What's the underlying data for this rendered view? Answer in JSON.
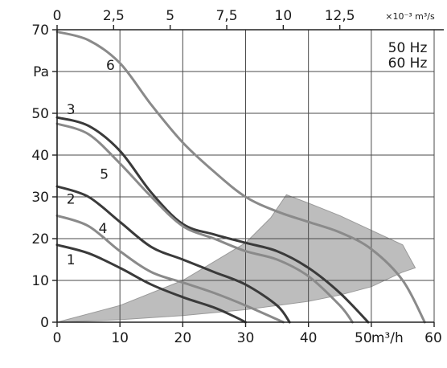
{
  "chart_data": {
    "type": "line",
    "title": "",
    "x_bottom": {
      "ticks": [
        0,
        10,
        20,
        30,
        40,
        50,
        60
      ],
      "tick_labels": [
        "0",
        "10",
        "20",
        "30",
        "40",
        "50",
        "60"
      ],
      "unit_label": "m³/h",
      "range": [
        0,
        60
      ]
    },
    "x_top": {
      "ticks": [
        0,
        2.5,
        5,
        7.5,
        10,
        12.5
      ],
      "tick_labels": [
        "0",
        "2,5",
        "5",
        "7,5",
        "10",
        "12,5"
      ],
      "unit_label": "×10⁻³ m³/s",
      "range": [
        0,
        16.67
      ]
    },
    "y": {
      "ticks": [
        0,
        10,
        20,
        30,
        40,
        50,
        60,
        70
      ],
      "tick_labels": [
        "0",
        "10",
        "20",
        "30",
        "40",
        "50",
        "60",
        "70"
      ],
      "unit_label": "Pa",
      "range": [
        0,
        70
      ]
    },
    "legend": {
      "lines": [
        "50 Hz",
        "60 Hz"
      ],
      "placement": "top-right"
    },
    "grid": true,
    "colors": {
      "dark": "#3a3a3a",
      "light": "#8a8a8a",
      "shade": "#bdbdbd",
      "grid": "#4a4a4a"
    },
    "series": [
      {
        "name": "1",
        "style": "dark",
        "x": [
          0,
          5,
          10,
          15,
          20,
          25,
          28,
          30
        ],
        "y": [
          18.5,
          16.5,
          13,
          9,
          6,
          3.5,
          1.5,
          0
        ]
      },
      {
        "name": "2",
        "style": "dark",
        "x": [
          0,
          5,
          10,
          15,
          20,
          25,
          30,
          35,
          37
        ],
        "y": [
          32.5,
          30,
          24,
          18,
          15,
          12,
          9,
          4,
          0
        ]
      },
      {
        "name": "3",
        "style": "dark",
        "x": [
          0,
          5,
          10,
          15,
          20,
          25,
          30,
          35,
          40,
          45,
          49.5
        ],
        "y": [
          49,
          47,
          41,
          31,
          23.5,
          21,
          19,
          17,
          13,
          7,
          0
        ]
      },
      {
        "name": "4",
        "style": "light",
        "x": [
          0,
          5,
          10,
          15,
          20,
          25,
          30,
          36
        ],
        "y": [
          25.5,
          23,
          17,
          12,
          9.5,
          7,
          4,
          0
        ]
      },
      {
        "name": "5",
        "style": "light",
        "x": [
          0,
          5,
          10,
          15,
          20,
          25,
          30,
          35,
          40,
          45,
          47
        ],
        "y": [
          47.5,
          45,
          38,
          30,
          23,
          20,
          17,
          15,
          11,
          4,
          0
        ]
      },
      {
        "name": "6",
        "style": "light",
        "x": [
          0,
          5,
          10,
          15,
          20,
          25,
          30,
          35,
          40,
          45,
          50,
          55,
          58.5
        ],
        "y": [
          69.5,
          67.5,
          62,
          52,
          43,
          36,
          30,
          26.5,
          24,
          21.5,
          17.5,
          10,
          0
        ]
      }
    ],
    "curve_labels": [
      {
        "text": "1",
        "x": 2.2,
        "y": 15
      },
      {
        "text": "2",
        "x": 2.2,
        "y": 29.5
      },
      {
        "text": "3",
        "x": 2.2,
        "y": 51
      },
      {
        "text": "4",
        "x": 7.3,
        "y": 22.5
      },
      {
        "text": "5",
        "x": 7.5,
        "y": 35.5
      },
      {
        "text": "6",
        "x": 8.5,
        "y": 61.5
      }
    ],
    "operating_region": {
      "x": [
        0,
        10,
        20,
        30,
        34,
        36.5,
        40,
        45,
        50,
        55,
        57,
        55,
        50,
        45,
        40,
        35,
        30,
        20,
        10,
        0
      ],
      "y": [
        0,
        4,
        10,
        19,
        25,
        30.5,
        28.5,
        25.5,
        22,
        18.5,
        13,
        12,
        8.5,
        6.5,
        5,
        4,
        3,
        1.6,
        0.6,
        0
      ]
    }
  }
}
